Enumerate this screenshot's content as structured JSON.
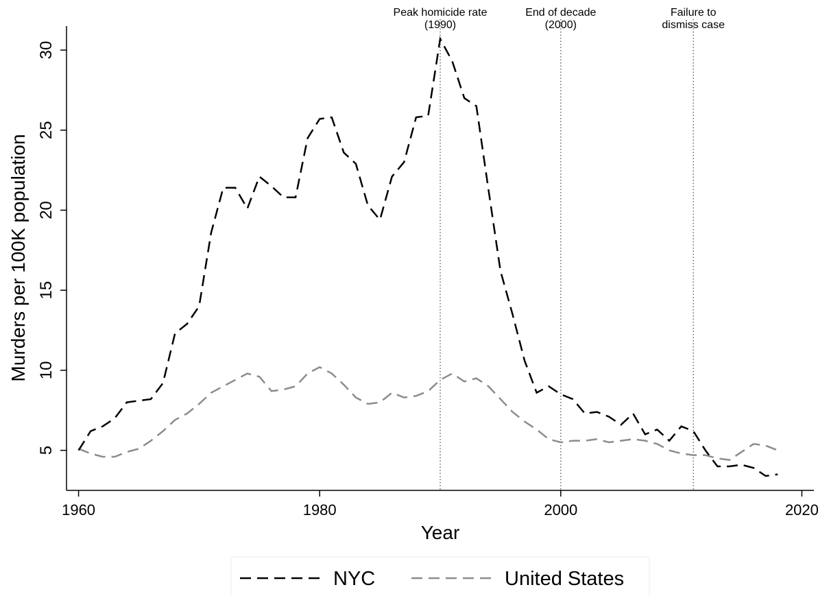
{
  "chart_data": {
    "type": "line",
    "x_label": "Year",
    "y_label": "Murders per 100K population",
    "x": [
      1960,
      1961,
      1962,
      1963,
      1964,
      1965,
      1966,
      1967,
      1968,
      1969,
      1970,
      1971,
      1972,
      1973,
      1974,
      1975,
      1976,
      1977,
      1978,
      1979,
      1980,
      1981,
      1982,
      1983,
      1984,
      1985,
      1986,
      1987,
      1988,
      1989,
      1990,
      1991,
      1992,
      1993,
      1994,
      1995,
      1996,
      1997,
      1998,
      1999,
      2000,
      2001,
      2002,
      2003,
      2004,
      2005,
      2006,
      2007,
      2008,
      2009,
      2010,
      2011,
      2012,
      2013,
      2014,
      2015,
      2016,
      2017,
      2018
    ],
    "series": [
      {
        "name": "NYC",
        "color": "#000000",
        "values": [
          5.0,
          6.2,
          6.5,
          7.0,
          8.0,
          8.1,
          8.2,
          9.2,
          12.3,
          12.9,
          14.0,
          18.6,
          21.4,
          21.4,
          20.1,
          22.1,
          21.5,
          20.8,
          20.8,
          24.5,
          25.7,
          25.8,
          23.6,
          22.9,
          20.3,
          19.4,
          22.1,
          23.0,
          25.8,
          25.9,
          30.7,
          29.3,
          27.0,
          26.5,
          21.3,
          16.2,
          13.5,
          10.6,
          8.6,
          9.0,
          8.5,
          8.2,
          7.3,
          7.4,
          7.1,
          6.6,
          7.3,
          6.0,
          6.3,
          5.6,
          6.5,
          6.2,
          5.0,
          4.0,
          4.0,
          4.1,
          3.9,
          3.4,
          3.5
        ]
      },
      {
        "name": "United States",
        "color": "#8c8c8c",
        "values": [
          5.1,
          4.8,
          4.6,
          4.6,
          4.9,
          5.1,
          5.6,
          6.2,
          6.9,
          7.3,
          7.9,
          8.6,
          9.0,
          9.4,
          9.8,
          9.6,
          8.7,
          8.8,
          9.0,
          9.8,
          10.2,
          9.8,
          9.1,
          8.3,
          7.9,
          8.0,
          8.6,
          8.3,
          8.4,
          8.7,
          9.4,
          9.8,
          9.3,
          9.5,
          9.0,
          8.2,
          7.4,
          6.8,
          6.3,
          5.7,
          5.5,
          5.6,
          5.6,
          5.7,
          5.5,
          5.6,
          5.7,
          5.6,
          5.4,
          5.0,
          4.8,
          4.7,
          4.7,
          4.5,
          4.4,
          4.9,
          5.4,
          5.3,
          5.0
        ]
      }
    ],
    "annotations": [
      {
        "x": 1990,
        "label": [
          "Peak homicide rate",
          "(1990)"
        ]
      },
      {
        "x": 2000,
        "label": [
          "End of decade",
          "(2000)"
        ]
      },
      {
        "x": 2011,
        "label": [
          "Failure to",
          "dismiss case"
        ]
      }
    ],
    "xlim": [
      1959,
      2021
    ],
    "xticks": [
      1960,
      1980,
      2000,
      2020
    ],
    "ylim": [
      2.5,
      31.5
    ],
    "yticks": [
      5,
      10,
      15,
      20,
      25,
      30
    ],
    "grid": false,
    "legend": "bottom"
  }
}
